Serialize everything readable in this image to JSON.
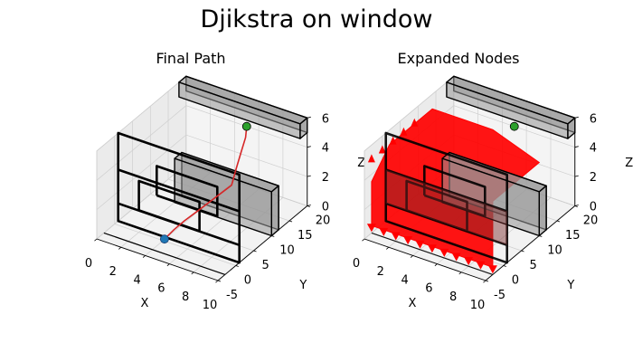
{
  "figure": {
    "suptitle": "Djikstra on window"
  },
  "chart_data": [
    {
      "type": "3d-line",
      "title": "Final Path",
      "xlabel": "X",
      "ylabel": "Y",
      "zlabel": "Z",
      "x_ticks": [
        "0",
        "2",
        "4",
        "6",
        "8",
        "10"
      ],
      "y_ticks": [
        "-5",
        "0",
        "5",
        "10",
        "15",
        "20"
      ],
      "z_ticks": [
        "0",
        "2",
        "4",
        "6"
      ],
      "xlim": [
        0,
        10
      ],
      "ylim": [
        -5,
        20
      ],
      "zlim": [
        0,
        6
      ],
      "grid": true,
      "start_point": {
        "x": 5,
        "y": -3,
        "z": 1,
        "color": "#1f77b4"
      },
      "goal_point": {
        "x": 5,
        "y": 20,
        "z": 4,
        "color": "#2ca02c"
      },
      "path_color": "#d62728"
    },
    {
      "type": "3d-scatter",
      "title": "Expanded Nodes",
      "xlabel": "X",
      "ylabel": "Y",
      "zlabel": "Z",
      "x_ticks": [
        "0",
        "2",
        "4",
        "6",
        "8",
        "10"
      ],
      "y_ticks": [
        "-5",
        "0",
        "5",
        "10",
        "15",
        "20"
      ],
      "z_ticks": [
        "0",
        "2",
        "4",
        "6"
      ],
      "xlim": [
        0,
        10
      ],
      "ylim": [
        -5,
        20
      ],
      "zlim": [
        0,
        6
      ],
      "grid": true,
      "goal_point": {
        "x": 5,
        "y": 20,
        "z": 4,
        "color": "#2ca02c"
      },
      "nodes_color": "#ff0000"
    }
  ]
}
